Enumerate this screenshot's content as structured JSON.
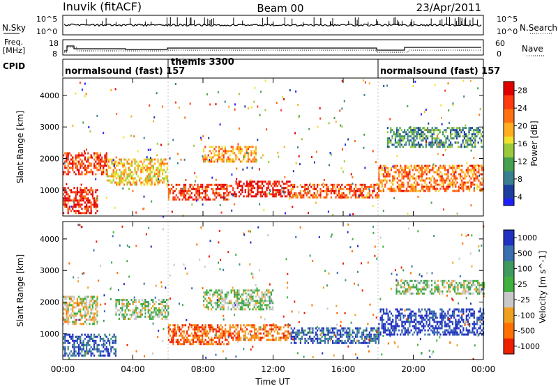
{
  "header": {
    "station": "Inuvik (fitACF)",
    "beam": "Beam 00",
    "date": "23/Apr/2011"
  },
  "left_labels": {
    "nsky": "N.Sky",
    "freq_line1": "Freq.",
    "freq_line2": "[MHz]",
    "cpid": "CPID"
  },
  "right_labels": {
    "nsearch": "N.Search",
    "nave": "Nave"
  },
  "noise_panel": {
    "left_ticks": [
      "10^5",
      "10^0"
    ],
    "right_ticks": [
      "10^5",
      "10^0"
    ]
  },
  "freq_panel": {
    "left_ticks": [
      "18",
      "8"
    ],
    "right_ticks": [
      "60",
      "0"
    ]
  },
  "cpid_segments": [
    {
      "label": "normalsound (fast) 157",
      "start_hour": 0.0,
      "end_hour": 6.0
    },
    {
      "label": "themis 3300",
      "start_hour": 6.0,
      "end_hour": 18.0
    },
    {
      "label": "normalsound (fast) 157",
      "start_hour": 18.0,
      "end_hour": 24.0
    }
  ],
  "chart_data": [
    {
      "type": "heatmap",
      "panel": "power",
      "ylabel": "Slant Range [km]",
      "xlabel": "",
      "xlim": [
        0,
        24
      ],
      "ylim": [
        180,
        4550
      ],
      "yticks": [
        "1000",
        "2000",
        "3000",
        "4000"
      ],
      "colorbar_label": "Power [dB]",
      "colorbar_ticks": [
        "28",
        "24",
        "20",
        "16",
        "12",
        "8",
        "4"
      ],
      "colorscale": [
        "#2020ff",
        "#1c3f9e",
        "#3a7f8f",
        "#46a04e",
        "#9ac93c",
        "#f0e030",
        "#ffae20",
        "#ff7010",
        "#ff3a10",
        "#e00000"
      ],
      "scatter_bands": [
        {
          "x0": 0.0,
          "x1": 2.5,
          "y0": 1500,
          "y1": 2200,
          "v": 0.85
        },
        {
          "x0": 0.0,
          "x1": 2.0,
          "y0": 300,
          "y1": 1100,
          "v": 0.9
        },
        {
          "x0": 2.5,
          "x1": 6.0,
          "y0": 1200,
          "y1": 2000,
          "v": 0.6
        },
        {
          "x0": 6.0,
          "x1": 9.5,
          "y0": 700,
          "y1": 1200,
          "v": 0.85
        },
        {
          "x0": 8.0,
          "x1": 11.0,
          "y0": 1900,
          "y1": 2400,
          "v": 0.65
        },
        {
          "x0": 9.5,
          "x1": 13.0,
          "y0": 800,
          "y1": 1300,
          "v": 0.95
        },
        {
          "x0": 13.0,
          "x1": 18.0,
          "y0": 800,
          "y1": 1200,
          "v": 0.8
        },
        {
          "x0": 18.0,
          "x1": 24.0,
          "y0": 1000,
          "y1": 1800,
          "v": 0.75
        },
        {
          "x0": 18.5,
          "x1": 24.0,
          "y0": 2400,
          "y1": 3000,
          "v": 0.3
        }
      ]
    },
    {
      "type": "heatmap",
      "panel": "velocity",
      "ylabel": "Slant Range [km]",
      "xlabel": "Time UT",
      "xlim": [
        0,
        24
      ],
      "ylim": [
        180,
        4550
      ],
      "xticks": [
        "00:00",
        "04:00",
        "08:00",
        "12:00",
        "16:00",
        "20:00",
        "00:00"
      ],
      "yticks": [
        "1000",
        "2000",
        "3000",
        "4000"
      ],
      "colorbar_label": "Velocity [m s^-1]",
      "colorbar_ticks": [
        "1000",
        "500",
        "100",
        "25",
        "-25",
        "-100",
        "-500",
        "-1000"
      ],
      "colorscale": [
        "#2030c0",
        "#3a6fb0",
        "#3f9a60",
        "#40b040",
        "#c8c8c8",
        "#f0a020",
        "#ff7000",
        "#ee2000"
      ],
      "scatter_bands": [
        {
          "x0": 0.0,
          "x1": 2.0,
          "y0": 1300,
          "y1": 2200,
          "v": 0.6
        },
        {
          "x0": 0.0,
          "x1": 3.0,
          "y0": 300,
          "y1": 1000,
          "v": 0.15
        },
        {
          "x0": 3.0,
          "x1": 6.0,
          "y0": 1500,
          "y1": 2100,
          "v": 0.5
        },
        {
          "x0": 6.0,
          "x1": 9.5,
          "y0": 700,
          "y1": 1300,
          "v": 0.85
        },
        {
          "x0": 8.0,
          "x1": 12.0,
          "y0": 1800,
          "y1": 2400,
          "v": 0.5
        },
        {
          "x0": 9.5,
          "x1": 13.0,
          "y0": 800,
          "y1": 1300,
          "v": 0.8
        },
        {
          "x0": 13.0,
          "x1": 18.0,
          "y0": 700,
          "y1": 1200,
          "v": 0.15
        },
        {
          "x0": 18.0,
          "x1": 24.0,
          "y0": 1000,
          "y1": 1800,
          "v": 0.05
        },
        {
          "x0": 19.0,
          "x1": 24.0,
          "y0": 2300,
          "y1": 2700,
          "v": 0.5
        }
      ]
    }
  ]
}
